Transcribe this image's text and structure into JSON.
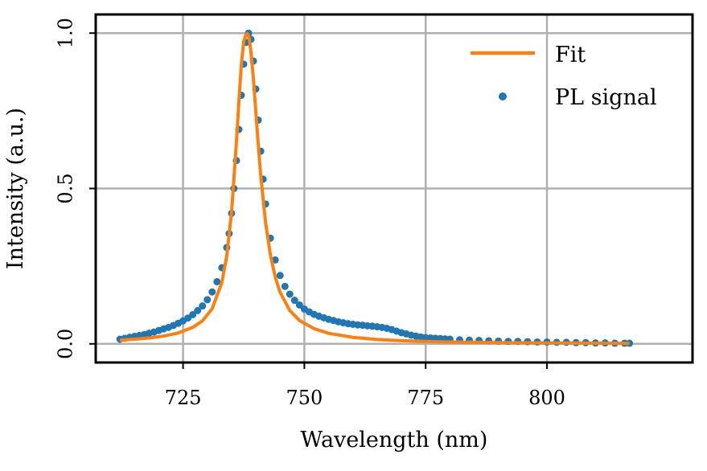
{
  "chart_data": {
    "type": "line",
    "xlabel": "Wavelength (nm)",
    "ylabel": "Intensity (a.u.)",
    "xlim": [
      707,
      830
    ],
    "ylim": [
      -0.06,
      1.06
    ],
    "x_ticks": [
      725,
      750,
      775,
      800
    ],
    "x_tick_labels": [
      "725",
      "750",
      "775",
      "800"
    ],
    "y_ticks": [
      0.0,
      0.5,
      1.0
    ],
    "y_tick_labels": [
      "0.0",
      "0.5",
      "1.0"
    ],
    "grid": true,
    "legend_position": "top-right",
    "series": [
      {
        "name": "Fit",
        "kind": "line",
        "color": "#ff7f0e",
        "x": [
          712,
          715,
          718,
          721,
          724,
          727,
          729,
          731,
          733,
          734,
          735,
          736,
          736.5,
          737,
          737.5,
          738,
          738.3,
          738.6,
          739,
          739.5,
          740,
          740.5,
          741,
          742,
          743,
          744,
          745,
          747,
          749,
          752,
          755,
          760,
          765,
          770,
          775,
          780,
          790,
          800,
          810,
          817
        ],
        "y": [
          0.012,
          0.015,
          0.019,
          0.025,
          0.035,
          0.053,
          0.074,
          0.113,
          0.197,
          0.282,
          0.424,
          0.647,
          0.779,
          0.897,
          0.973,
          0.997,
          0.998,
          0.986,
          0.94,
          0.853,
          0.746,
          0.641,
          0.545,
          0.392,
          0.286,
          0.215,
          0.166,
          0.107,
          0.075,
          0.049,
          0.034,
          0.021,
          0.014,
          0.01,
          0.008,
          0.006,
          0.004,
          0.003,
          0.002,
          0.0015
        ]
      },
      {
        "name": "PL signal",
        "kind": "scatter",
        "color": "#1f77b4",
        "x": [
          712,
          713,
          714,
          715,
          716,
          717,
          718,
          719,
          720,
          721,
          722,
          723,
          724,
          725,
          726,
          727,
          728,
          729,
          730,
          731,
          732,
          733,
          734,
          734.5,
          735,
          735.5,
          736,
          736.5,
          737,
          737.5,
          738,
          738.5,
          739,
          739.5,
          740,
          740.5,
          741,
          741.5,
          742,
          743,
          744,
          745,
          746,
          747,
          748,
          749,
          750,
          751,
          752,
          753,
          754,
          755,
          756,
          757,
          758,
          759,
          760,
          761,
          762,
          763,
          764,
          765,
          766,
          767,
          768,
          769,
          770,
          771,
          772,
          773,
          774,
          775,
          776,
          777,
          778,
          779,
          780,
          782,
          784,
          786,
          788,
          790,
          792,
          794,
          796,
          798,
          800,
          802,
          804,
          806,
          808,
          810,
          812,
          814,
          816,
          817
        ],
        "y": [
          0.015,
          0.018,
          0.021,
          0.024,
          0.027,
          0.03,
          0.034,
          0.038,
          0.043,
          0.048,
          0.053,
          0.059,
          0.066,
          0.074,
          0.083,
          0.094,
          0.107,
          0.122,
          0.142,
          0.167,
          0.2,
          0.245,
          0.31,
          0.355,
          0.42,
          0.5,
          0.59,
          0.69,
          0.8,
          0.9,
          0.97,
          1.0,
          0.98,
          0.91,
          0.82,
          0.72,
          0.62,
          0.53,
          0.45,
          0.34,
          0.27,
          0.22,
          0.185,
          0.16,
          0.14,
          0.125,
          0.112,
          0.103,
          0.095,
          0.089,
          0.084,
          0.079,
          0.075,
          0.071,
          0.068,
          0.065,
          0.063,
          0.061,
          0.06,
          0.058,
          0.057,
          0.055,
          0.053,
          0.05,
          0.046,
          0.041,
          0.036,
          0.032,
          0.028,
          0.025,
          0.022,
          0.02,
          0.019,
          0.018,
          0.017,
          0.016,
          0.015,
          0.013,
          0.012,
          0.011,
          0.01,
          0.009,
          0.008,
          0.008,
          0.007,
          0.006,
          0.006,
          0.005,
          0.005,
          0.004,
          0.004,
          0.003,
          0.003,
          0.002,
          0.002,
          0.002
        ]
      }
    ]
  }
}
